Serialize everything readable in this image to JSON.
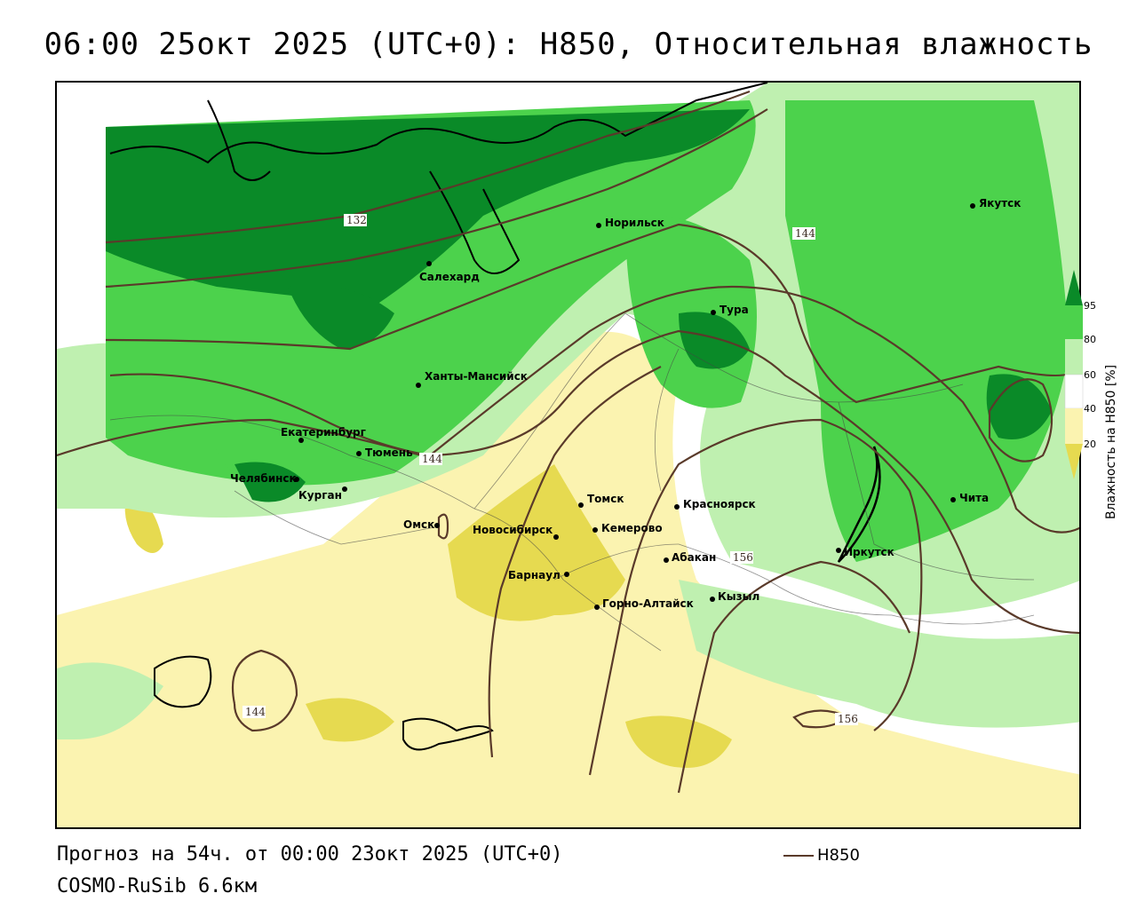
{
  "header": {
    "title": "06:00 25окт 2025 (UTC+0): H850, Относительная влажность"
  },
  "map": {
    "cities": [
      {
        "name": "Якутск"
      },
      {
        "name": "Норильск"
      },
      {
        "name": "Салехард"
      },
      {
        "name": "Тура"
      },
      {
        "name": "Ханты-Мансийск"
      },
      {
        "name": "Екатеринбург"
      },
      {
        "name": "Тюмень"
      },
      {
        "name": "Челябинск"
      },
      {
        "name": "Курган"
      },
      {
        "name": "Омск"
      },
      {
        "name": "Томск"
      },
      {
        "name": "Красноярск"
      },
      {
        "name": "Новосибирск"
      },
      {
        "name": "Кемерово"
      },
      {
        "name": "Абакан"
      },
      {
        "name": "Иркутск"
      },
      {
        "name": "Барнаул"
      },
      {
        "name": "Горно-Алтайск"
      },
      {
        "name": "Кызыл"
      },
      {
        "name": "Чита"
      }
    ],
    "contour_labels": [
      {
        "text": "132"
      },
      {
        "text": "144"
      },
      {
        "text": "144"
      },
      {
        "text": "156"
      },
      {
        "text": "144"
      },
      {
        "text": "156"
      }
    ],
    "colors": {
      "dark_green": "#0a8a28",
      "green": "#4cd24c",
      "light_green": "#bff0b0",
      "light_yellow": "#fbf3b0",
      "yellow": "#e6da50",
      "contour": "#5a3a2a"
    }
  },
  "legend": {
    "title": "Влажность на H850 [%]",
    "ticks": [
      "95",
      "80",
      "60",
      "40",
      "20"
    ],
    "colors": [
      "#0a8a28",
      "#4cd24c",
      "#bff0b0",
      "#ffffff",
      "#fbf3b0",
      "#e6da50"
    ]
  },
  "footer": {
    "forecast": "Прогноз на 54ч. от 00:00 23окт 2025 (UTC+0)",
    "model": "COSMO-RuSib 6.6км",
    "line_legend": "H850"
  }
}
